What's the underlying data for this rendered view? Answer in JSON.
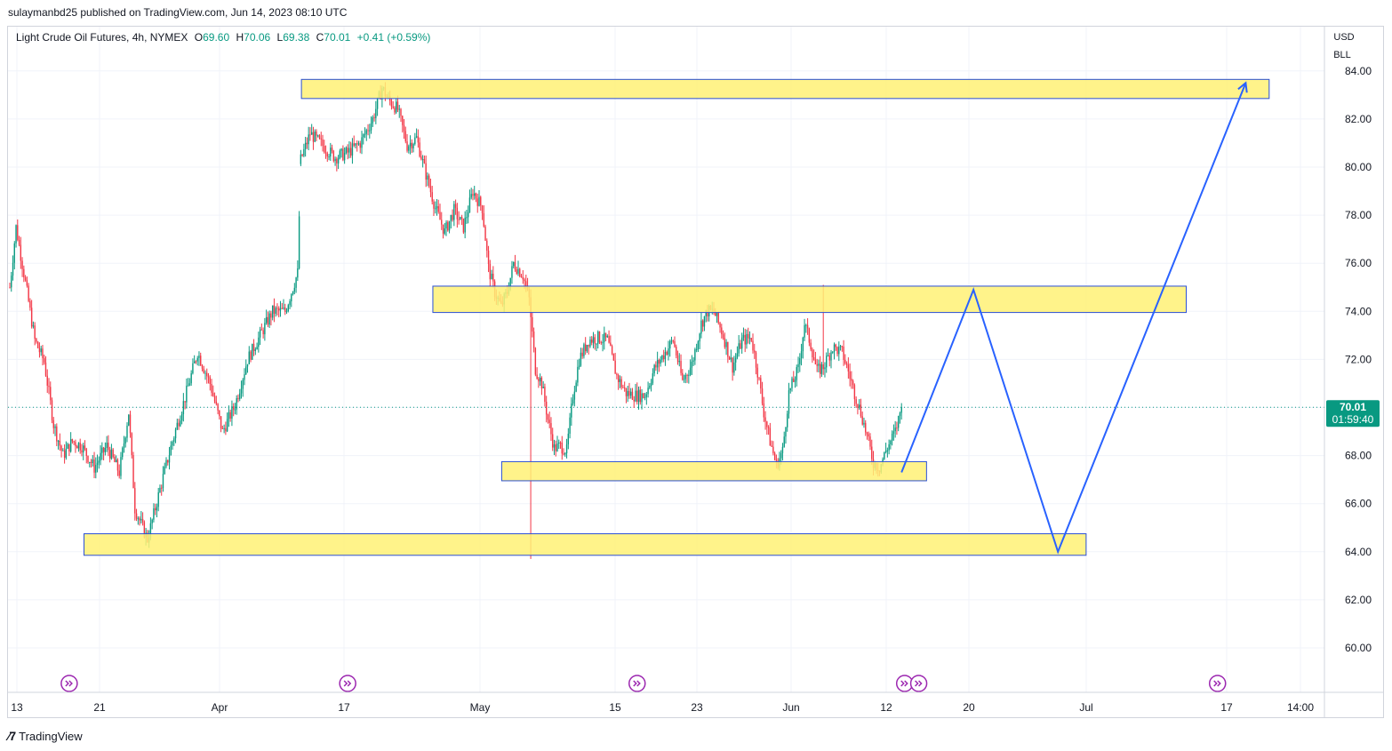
{
  "publisher_line": "sulaymanbd25 published on TradingView.com, Jun 14, 2023 08:10 UTC",
  "legend": {
    "symbol": "Light Crude Oil Futures, 4h, NYMEX",
    "o_label": "O",
    "o_value": "69.60",
    "h_label": "H",
    "h_value": "70.06",
    "l_label": "L",
    "l_value": "69.38",
    "c_label": "C",
    "c_value": "70.01",
    "change": "+0.41 (+0.59%)"
  },
  "currency": "USD",
  "unit": "BLL",
  "price_tag": {
    "value": "70.01",
    "countdown": "01:59:40"
  },
  "footer": {
    "brand": "TradingView"
  },
  "colors": {
    "up": "#089981",
    "down": "#f23645",
    "zone_fill": "#fff176",
    "zone_border": "#2a4fd6",
    "arrow": "#2962ff",
    "event": "#9c27b0",
    "grid": "#f0f3fa",
    "axis_text": "#131722"
  },
  "chart_data": {
    "type": "candlestick",
    "title": "Light Crude Oil Futures, 4h, NYMEX",
    "x_ticks": [
      "13",
      "21",
      "Apr",
      "17",
      "May",
      "15",
      "23",
      "Jun",
      "12",
      "20",
      "Jul",
      "17",
      "14:00"
    ],
    "y_ticks": [
      "60.00",
      "62.00",
      "64.00",
      "66.00",
      "68.00",
      "70.00",
      "72.00",
      "74.00",
      "76.00",
      "78.00",
      "80.00",
      "82.00",
      "84.00"
    ],
    "ylim": [
      58.5,
      84.5
    ],
    "last_price": 70.01,
    "price_path": [
      [
        0,
        75.0
      ],
      [
        4,
        77.5
      ],
      [
        10,
        75.2
      ],
      [
        16,
        72.8
      ],
      [
        22,
        71.9
      ],
      [
        28,
        69.3
      ],
      [
        34,
        68.0
      ],
      [
        40,
        68.6
      ],
      [
        46,
        68.4
      ],
      [
        54,
        67.5
      ],
      [
        62,
        68.4
      ],
      [
        70,
        67.3
      ],
      [
        76,
        69.8
      ],
      [
        80,
        65.8
      ],
      [
        88,
        64.5
      ],
      [
        96,
        66.6
      ],
      [
        104,
        68.6
      ],
      [
        112,
        70.4
      ],
      [
        120,
        72.3
      ],
      [
        128,
        71.0
      ],
      [
        136,
        69.0
      ],
      [
        144,
        70.1
      ],
      [
        152,
        72.0
      ],
      [
        160,
        73.0
      ],
      [
        168,
        74.0
      ],
      [
        176,
        74.0
      ],
      [
        184,
        75.6
      ],
      [
        186,
        80.3
      ],
      [
        192,
        81.4
      ],
      [
        200,
        80.9
      ],
      [
        208,
        80.4
      ],
      [
        216,
        80.6
      ],
      [
        224,
        81.0
      ],
      [
        232,
        82.0
      ],
      [
        238,
        83.3
      ],
      [
        242,
        82.8
      ],
      [
        248,
        82.4
      ],
      [
        254,
        80.9
      ],
      [
        260,
        81.2
      ],
      [
        266,
        79.7
      ],
      [
        272,
        78.3
      ],
      [
        278,
        77.3
      ],
      [
        284,
        78.2
      ],
      [
        290,
        77.5
      ],
      [
        296,
        79.0
      ],
      [
        302,
        78.3
      ],
      [
        306,
        75.8
      ],
      [
        310,
        74.8
      ],
      [
        314,
        74.2
      ],
      [
        318,
        74.8
      ],
      [
        322,
        76.0
      ],
      [
        328,
        75.5
      ],
      [
        332,
        74.5
      ],
      [
        336,
        71.6
      ],
      [
        340,
        71.0
      ],
      [
        344,
        69.5
      ],
      [
        348,
        68.3
      ],
      [
        352,
        68.4
      ],
      [
        356,
        68.2
      ],
      [
        360,
        70.5
      ],
      [
        364,
        72.0
      ],
      [
        370,
        72.8
      ],
      [
        376,
        72.9
      ],
      [
        382,
        72.8
      ],
      [
        388,
        71.3
      ],
      [
        394,
        70.6
      ],
      [
        400,
        70.5
      ],
      [
        406,
        70.5
      ],
      [
        412,
        71.6
      ],
      [
        418,
        72.2
      ],
      [
        424,
        72.8
      ],
      [
        430,
        71.1
      ],
      [
        436,
        71.8
      ],
      [
        442,
        73.5
      ],
      [
        446,
        74.0
      ],
      [
        450,
        74.0
      ],
      [
        456,
        73.0
      ],
      [
        462,
        71.7
      ],
      [
        468,
        72.8
      ],
      [
        474,
        72.9
      ],
      [
        478,
        71.5
      ],
      [
        482,
        69.8
      ],
      [
        486,
        68.6
      ],
      [
        490,
        67.6
      ],
      [
        494,
        68.2
      ],
      [
        498,
        70.6
      ],
      [
        504,
        71.6
      ],
      [
        508,
        73.5
      ],
      [
        512,
        72.6
      ],
      [
        516,
        71.5
      ],
      [
        520,
        71.7
      ],
      [
        526,
        72.5
      ],
      [
        532,
        72.3
      ],
      [
        536,
        71.5
      ],
      [
        540,
        70.6
      ],
      [
        544,
        69.8
      ],
      [
        548,
        68.8
      ],
      [
        552,
        67.7
      ],
      [
        556,
        67.5
      ],
      [
        560,
        68.2
      ],
      [
        566,
        69.0
      ],
      [
        570,
        70.01
      ]
    ],
    "zones": [
      {
        "from_bar": 187,
        "to_bar": 805,
        "low": 83.0,
        "high": 83.5
      },
      {
        "from_bar": 271,
        "to_bar": 752,
        "low": 74.1,
        "high": 74.9
      },
      {
        "from_bar": 315,
        "to_bar": 586,
        "low": 67.1,
        "high": 67.6
      },
      {
        "from_bar": 48,
        "to_bar": 688,
        "low": 64.0,
        "high": 64.6
      }
    ],
    "projection_path": [
      [
        570,
        67.3
      ],
      [
        616,
        74.9
      ],
      [
        670,
        64.0
      ],
      [
        790,
        83.5
      ]
    ],
    "event_markers_bars": [
      38,
      216,
      401,
      572,
      581,
      772
    ]
  }
}
